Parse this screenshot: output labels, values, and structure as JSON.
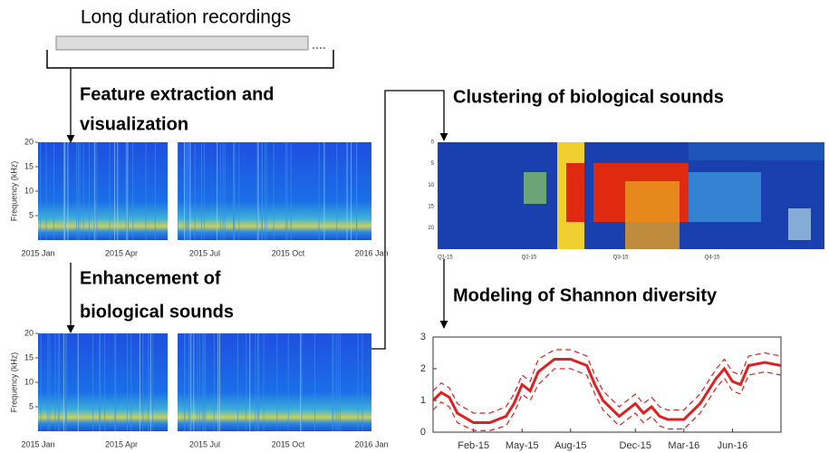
{
  "title": "Long duration recordings",
  "steps": {
    "feature": [
      "Feature extraction and",
      "visualization"
    ],
    "enhancement": [
      "Enhancement of",
      "biological sounds"
    ],
    "clustering": "Clustering of biological sounds",
    "modeling": "Modeling of Shannon diversity"
  },
  "spectrograms": [
    {
      "ylabel": "Frequency (kHz)",
      "ylim": [
        0,
        20
      ],
      "yticks": [
        5,
        10,
        15,
        20
      ],
      "xticks": [
        "2015 Jan",
        "2015 Apr",
        "2015 Jul",
        "2015 Oct",
        "2016 Jan"
      ]
    },
    {
      "ylabel": "Frequency (kHz)",
      "ylim": [
        0,
        20
      ],
      "yticks": [
        5,
        10,
        15,
        20
      ],
      "xticks": [
        "2015 Jan",
        "2015 Apr",
        "2015 Jul",
        "2015 Oct",
        "2016 Jan"
      ]
    }
  ],
  "clusters": {
    "ylim": [
      0,
      25
    ],
    "yticks": [
      0,
      5,
      10,
      15,
      20
    ],
    "xticks": [
      "Q1-15",
      "Q2-15",
      "Q3-15",
      "Q4-15"
    ]
  },
  "diversity": {
    "type": "line",
    "x": [
      -1.5,
      -1,
      -0.5,
      0,
      1,
      2,
      3,
      3.5,
      4,
      4.5,
      5,
      6,
      7,
      8,
      8.5,
      9,
      10,
      11,
      11.5,
      12,
      12.5,
      13,
      14,
      15,
      16,
      16.5,
      17,
      17.5,
      18,
      19,
      20
    ],
    "series": [
      {
        "color": "#e02020",
        "line_style": "solid",
        "values": [
          1.0,
          1.25,
          1.1,
          0.6,
          0.3,
          0.3,
          0.5,
          0.9,
          1.5,
          1.3,
          1.9,
          2.3,
          2.3,
          2.1,
          1.5,
          1.0,
          0.5,
          0.9,
          0.6,
          0.8,
          0.5,
          0.4,
          0.4,
          0.9,
          1.7,
          2.0,
          1.6,
          1.5,
          2.1,
          2.2,
          2.1
        ]
      },
      {
        "color": "#e02020",
        "line_style": "dashed",
        "values": [
          1.3,
          1.55,
          1.4,
          0.9,
          0.6,
          0.6,
          0.8,
          1.2,
          1.8,
          1.6,
          2.3,
          2.6,
          2.6,
          2.4,
          1.8,
          1.3,
          0.8,
          1.2,
          0.9,
          1.1,
          0.8,
          0.7,
          0.7,
          1.2,
          2.0,
          2.3,
          1.9,
          1.8,
          2.4,
          2.5,
          2.4
        ]
      },
      {
        "color": "#e02020",
        "line_style": "dashed",
        "values": [
          0.7,
          0.95,
          0.8,
          0.3,
          0.05,
          0.05,
          0.2,
          0.6,
          1.2,
          1.0,
          1.5,
          2.0,
          2.0,
          1.8,
          1.2,
          0.7,
          0.2,
          0.6,
          0.3,
          0.5,
          0.2,
          0.1,
          0.1,
          0.6,
          1.4,
          1.7,
          1.3,
          1.2,
          1.8,
          1.9,
          1.8
        ]
      }
    ],
    "xlim": [
      -1.5,
      20
    ],
    "ylim": [
      0,
      3
    ],
    "yticks": [
      0,
      1,
      2,
      3
    ],
    "xticks": [
      {
        "value": 1,
        "label": "Feb-15"
      },
      {
        "value": 4,
        "label": "May-15"
      },
      {
        "value": 7,
        "label": "Aug-15"
      },
      {
        "value": 11,
        "label": "Dec-15"
      },
      {
        "value": 14,
        "label": "Mar-16"
      },
      {
        "value": 17,
        "label": "Jun-16"
      }
    ]
  }
}
